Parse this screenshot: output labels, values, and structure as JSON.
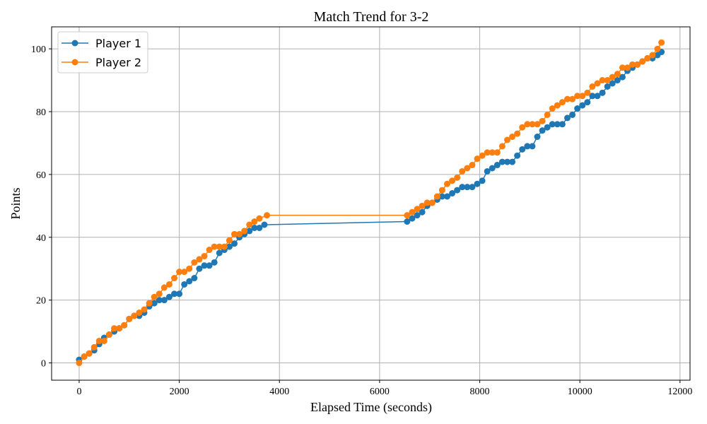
{
  "chart_data": {
    "type": "line",
    "title": "Match Trend for 3-2",
    "xlabel": "Elapsed Time (seconds)",
    "ylabel": "Points",
    "xlim": [
      -550,
      12200
    ],
    "ylim": [
      -5.5,
      107
    ],
    "xticks": [
      0,
      2000,
      4000,
      6000,
      8000,
      10000,
      12000
    ],
    "yticks": [
      0,
      20,
      40,
      60,
      80,
      100
    ],
    "grid": true,
    "legend_position": "top-left",
    "colors": {
      "Player 1": "#1f77b4",
      "Player 2": "#ff7f0e"
    },
    "series": [
      {
        "name": "Player 1",
        "x": [
          0,
          100,
          200,
          300,
          400,
          500,
          600,
          700,
          800,
          900,
          1000,
          1100,
          1200,
          1300,
          1400,
          1500,
          1600,
          1700,
          1800,
          1900,
          2000,
          2100,
          2200,
          2300,
          2400,
          2500,
          2600,
          2700,
          2800,
          2900,
          3000,
          3100,
          3200,
          3300,
          3400,
          3500,
          3600,
          3700,
          6550,
          6650,
          6750,
          6850,
          6950,
          7050,
          7150,
          7250,
          7350,
          7450,
          7550,
          7650,
          7750,
          7850,
          7950,
          8050,
          8150,
          8250,
          8350,
          8450,
          8550,
          8650,
          8750,
          8850,
          8950,
          9050,
          9150,
          9250,
          9350,
          9450,
          9550,
          9650,
          9750,
          9850,
          9950,
          10050,
          10150,
          10250,
          10350,
          10450,
          10550,
          10650,
          10750,
          10850,
          10950,
          11050,
          11150,
          11250,
          11350,
          11450,
          11550,
          11630
        ],
        "values": [
          1,
          2,
          3,
          4,
          6,
          8,
          9,
          10,
          11,
          12,
          14,
          15,
          15,
          16,
          18,
          19,
          20,
          20,
          21,
          22,
          22,
          25,
          26,
          27,
          30,
          31,
          31,
          32,
          35,
          36,
          37,
          38,
          40,
          41,
          42,
          43,
          43,
          44,
          45,
          46,
          47,
          48,
          50,
          51,
          52,
          53,
          53,
          54,
          55,
          56,
          56,
          56,
          57,
          58,
          61,
          62,
          63,
          64,
          64,
          64,
          66,
          68,
          69,
          69,
          72,
          74,
          75,
          76,
          76,
          76,
          78,
          79,
          81,
          82,
          83,
          85,
          85,
          86,
          88,
          89,
          90,
          91,
          93,
          94,
          95,
          96,
          97,
          97,
          98,
          99
        ]
      },
      {
        "name": "Player 2",
        "x": [
          0,
          100,
          200,
          300,
          400,
          500,
          600,
          700,
          800,
          900,
          1000,
          1100,
          1200,
          1300,
          1400,
          1500,
          1600,
          1700,
          1800,
          1900,
          2000,
          2100,
          2200,
          2300,
          2400,
          2500,
          2600,
          2700,
          2800,
          2900,
          3000,
          3100,
          3200,
          3300,
          3400,
          3500,
          3600,
          3750,
          6550,
          6650,
          6750,
          6850,
          6950,
          7050,
          7150,
          7250,
          7350,
          7450,
          7550,
          7650,
          7750,
          7850,
          7950,
          8050,
          8150,
          8250,
          8350,
          8450,
          8550,
          8650,
          8750,
          8850,
          8950,
          9050,
          9150,
          9250,
          9350,
          9450,
          9550,
          9650,
          9750,
          9850,
          9950,
          10050,
          10150,
          10250,
          10350,
          10450,
          10550,
          10650,
          10750,
          10850,
          10950,
          11050,
          11150,
          11250,
          11350,
          11450,
          11550,
          11630
        ],
        "values": [
          0,
          2,
          3,
          5,
          7,
          7,
          9,
          11,
          11,
          12,
          14,
          15,
          16,
          17,
          19,
          21,
          22,
          24,
          25,
          27,
          29,
          29,
          30,
          32,
          33,
          34,
          36,
          37,
          37,
          37,
          39,
          41,
          41,
          42,
          44,
          45,
          46,
          47,
          47,
          48,
          49,
          50,
          51,
          51,
          53,
          55,
          57,
          58,
          59,
          61,
          62,
          63,
          65,
          66,
          67,
          67,
          67,
          69,
          71,
          72,
          73,
          75,
          76,
          76,
          76,
          77,
          79,
          81,
          82,
          83,
          84,
          84,
          85,
          85,
          86,
          88,
          89,
          90,
          90,
          91,
          92,
          94,
          94,
          95,
          95,
          96,
          97,
          98,
          100,
          102
        ]
      }
    ]
  }
}
